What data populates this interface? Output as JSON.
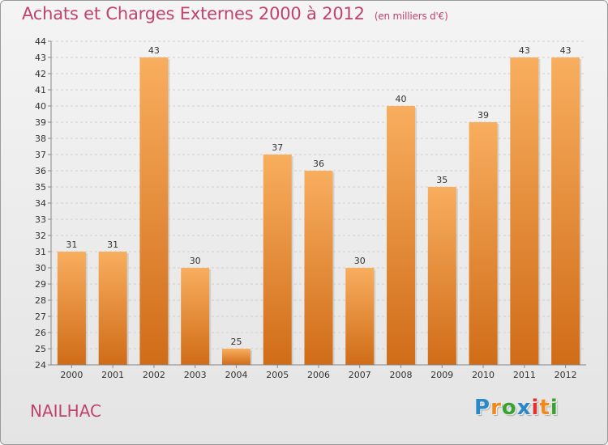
{
  "title": "Achats et Charges Externes 2000 à 2012",
  "unit": "(en milliers d'€)",
  "commune": "NAILHAC",
  "logo": {
    "letters": [
      "P",
      "r",
      "o",
      "x",
      "i",
      "t",
      "i"
    ],
    "colors": [
      "#2b88c8",
      "#f08a1e",
      "#3aa235",
      "#2b88c8",
      "#e0322c",
      "#f08a1e",
      "#3aa235"
    ]
  },
  "colors": {
    "bar": "#f0903a",
    "bar_light": "#f8ae5e",
    "bar_dark": "#d06c18",
    "title": "#c0436b"
  },
  "chart_data": {
    "type": "bar",
    "categories": [
      "2000",
      "2001",
      "2002",
      "2003",
      "2004",
      "2005",
      "2006",
      "2007",
      "2008",
      "2009",
      "2010",
      "2011",
      "2012"
    ],
    "values": [
      31,
      31,
      43,
      30,
      25,
      37,
      36,
      30,
      40,
      35,
      39,
      43,
      43
    ],
    "ylim": [
      24,
      44
    ],
    "yticks": [
      24,
      25,
      26,
      27,
      28,
      29,
      30,
      31,
      32,
      33,
      34,
      35,
      36,
      37,
      38,
      39,
      40,
      41,
      42,
      43,
      44
    ],
    "grid": true
  }
}
